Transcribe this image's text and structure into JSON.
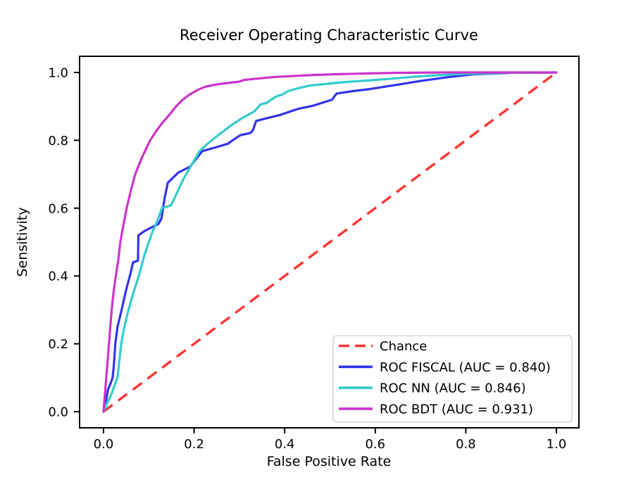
{
  "chart_data": {
    "type": "line",
    "title": "Receiver Operating Characteristic Curve",
    "xlabel": "False Positive Rate",
    "ylabel": "Sensitivity",
    "xlim": [
      -0.05,
      1.05
    ],
    "ylim": [
      -0.05,
      1.05
    ],
    "grid": false,
    "legend_position": "lower right",
    "xticks": [
      0.0,
      0.2,
      0.4,
      0.6,
      0.8,
      1.0
    ],
    "yticks": [
      0.0,
      0.2,
      0.4,
      0.6,
      0.8,
      1.0
    ],
    "xtick_labels": [
      "0.0",
      "0.2",
      "0.4",
      "0.6",
      "0.8",
      "1.0"
    ],
    "ytick_labels": [
      "0.0",
      "0.2",
      "0.4",
      "0.6",
      "0.8",
      "1.0"
    ],
    "frame_color": "#000000",
    "series": [
      {
        "key": "chance",
        "name": "Chance",
        "color": "#ff3333",
        "style": "dashed",
        "x": [
          0,
          1
        ],
        "y": [
          0,
          1
        ]
      },
      {
        "key": "roc-fiscal",
        "name": "ROC FISCAL (AUC = 0.840)",
        "auc": 0.84,
        "color": "#3333ee",
        "style": "solid",
        "x": [
          0,
          0.005,
          0.01,
          0.016,
          0.02,
          0.023,
          0.026,
          0.031,
          0.04,
          0.05,
          0.06,
          0.065,
          0.076,
          0.077,
          0.09,
          0.11,
          0.121,
          0.128,
          0.135,
          0.142,
          0.15,
          0.165,
          0.191,
          0.218,
          0.25,
          0.275,
          0.285,
          0.302,
          0.325,
          0.33,
          0.337,
          0.36,
          0.39,
          0.43,
          0.463,
          0.505,
          0.51,
          0.515,
          0.55,
          0.588,
          0.64,
          0.7,
          0.76,
          0.82,
          0.9,
          1.0
        ],
        "y": [
          0,
          0.03,
          0.065,
          0.085,
          0.1,
          0.14,
          0.2,
          0.25,
          0.3,
          0.36,
          0.41,
          0.44,
          0.445,
          0.52,
          0.532,
          0.546,
          0.553,
          0.57,
          0.63,
          0.675,
          0.685,
          0.705,
          0.722,
          0.768,
          0.78,
          0.79,
          0.8,
          0.815,
          0.822,
          0.83,
          0.857,
          0.865,
          0.875,
          0.893,
          0.902,
          0.92,
          0.93,
          0.938,
          0.945,
          0.951,
          0.962,
          0.975,
          0.986,
          0.995,
          0.999,
          1.0
        ]
      },
      {
        "key": "roc-nn",
        "name": "ROC NN (AUC = 0.846)",
        "auc": 0.846,
        "color": "#33cccc",
        "style": "solid",
        "x": [
          0,
          0.008,
          0.017,
          0.025,
          0.031,
          0.035,
          0.039,
          0.046,
          0.055,
          0.066,
          0.079,
          0.09,
          0.1,
          0.108,
          0.115,
          0.121,
          0.129,
          0.149,
          0.163,
          0.176,
          0.194,
          0.212,
          0.23,
          0.25,
          0.27,
          0.285,
          0.302,
          0.315,
          0.333,
          0.347,
          0.36,
          0.37,
          0.383,
          0.395,
          0.406,
          0.42,
          0.453,
          0.49,
          0.526,
          0.588,
          0.64,
          0.69,
          0.74,
          0.8,
          0.88,
          1.0
        ],
        "y": [
          0,
          0.025,
          0.05,
          0.08,
          0.1,
          0.15,
          0.2,
          0.25,
          0.3,
          0.35,
          0.405,
          0.46,
          0.5,
          0.53,
          0.55,
          0.57,
          0.6,
          0.608,
          0.647,
          0.685,
          0.726,
          0.768,
          0.79,
          0.812,
          0.832,
          0.847,
          0.862,
          0.872,
          0.885,
          0.906,
          0.91,
          0.92,
          0.93,
          0.935,
          0.944,
          0.95,
          0.961,
          0.966,
          0.971,
          0.977,
          0.982,
          0.988,
          0.992,
          0.996,
          0.999,
          1.0
        ]
      },
      {
        "key": "roc-bdt",
        "name": "ROC BDT (AUC = 0.931)",
        "auc": 0.931,
        "color": "#cc33cc",
        "style": "solid",
        "x": [
          0,
          0.003,
          0.006,
          0.009,
          0.012,
          0.015,
          0.018,
          0.022,
          0.027,
          0.033,
          0.037,
          0.044,
          0.051,
          0.06,
          0.07,
          0.085,
          0.103,
          0.118,
          0.129,
          0.142,
          0.16,
          0.175,
          0.19,
          0.21,
          0.225,
          0.25,
          0.28,
          0.3,
          0.31,
          0.34,
          0.38,
          0.425,
          0.47,
          0.52,
          0.58,
          0.65,
          0.75,
          1.0
        ],
        "y": [
          0,
          0.05,
          0.1,
          0.15,
          0.2,
          0.25,
          0.3,
          0.35,
          0.4,
          0.45,
          0.5,
          0.55,
          0.6,
          0.65,
          0.7,
          0.75,
          0.8,
          0.83,
          0.85,
          0.87,
          0.9,
          0.92,
          0.935,
          0.95,
          0.958,
          0.965,
          0.97,
          0.973,
          0.978,
          0.982,
          0.987,
          0.99,
          0.993,
          0.995,
          0.997,
          0.999,
          1.0,
          1.0
        ]
      }
    ]
  }
}
